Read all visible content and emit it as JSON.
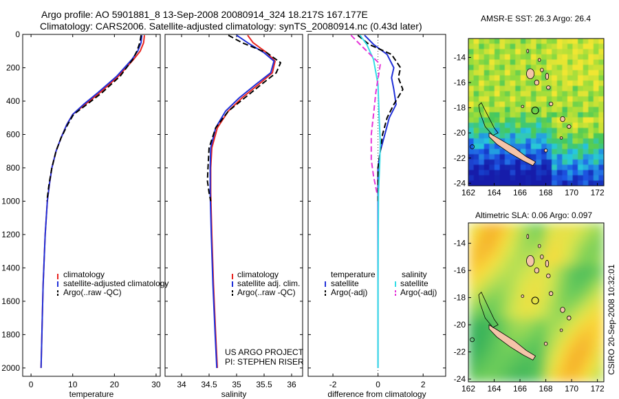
{
  "header": {
    "title_line1": "Argo profile: AO 5901881_8 13-Sep-2008 20080914_324 18.217S 167.177E",
    "title_line2": "Climatology: CARS2006. Satellite-adjusted climatology: synTS_20080914.nc (0.43d later)"
  },
  "footer": {
    "project_line1": "US ARGO PROJECT",
    "project_line2": "PI: STEPHEN RISER",
    "credit": "CSIRO 20-Sep-2008 10:32:01"
  },
  "colors": {
    "climatology": "#e8231f",
    "satellite": "#1f2fd8",
    "argo": "#000000",
    "salinity_sat": "#33dde6",
    "salinity_argo": "#e633d9",
    "land": "#f4c4a8"
  },
  "chart_data": [
    {
      "id": "temperature",
      "type": "line",
      "xlabel": "temperature",
      "ylabel": "",
      "xlim": [
        -2,
        31
      ],
      "ylim": [
        2050,
        0
      ],
      "xticks": [
        0,
        10,
        20,
        30
      ],
      "yticks": [
        0,
        200,
        400,
        600,
        800,
        1000,
        1200,
        1400,
        1600,
        1800,
        2000
      ],
      "legend": [
        "climatology",
        "satellite-adjusted climatology",
        "Argo(..raw -QC)"
      ],
      "legend_position": "lower-center",
      "series": [
        {
          "name": "climatology",
          "style": "solid",
          "color": "#e8231f",
          "x": [
            27.2,
            27.0,
            26.2,
            24.6,
            21.0,
            16.5,
            13.0,
            10.0,
            8.6,
            7.2,
            6.0,
            5.0,
            4.4,
            3.9,
            3.4,
            2.9,
            2.6,
            2.4
          ],
          "y": [
            5,
            50,
            100,
            150,
            250,
            350,
            420,
            480,
            540,
            620,
            700,
            800,
            900,
            1000,
            1200,
            1500,
            1800,
            2000
          ]
        },
        {
          "name": "satellite-adjusted climatology",
          "style": "solid",
          "color": "#1f2fd8",
          "x": [
            26.6,
            26.4,
            25.6,
            24.2,
            20.6,
            16.0,
            12.6,
            10.0,
            8.6,
            7.2,
            6.0,
            5.0,
            4.4,
            3.9,
            3.4,
            2.9,
            2.6,
            2.4
          ],
          "y": [
            5,
            50,
            100,
            150,
            250,
            350,
            420,
            480,
            540,
            620,
            700,
            800,
            900,
            1000,
            1200,
            1500,
            1800,
            2000
          ]
        },
        {
          "name": "Argo(..raw -QC)",
          "style": "dashed",
          "color": "#000000",
          "x": [
            26.4,
            26.1,
            25.4,
            24.4,
            21.4,
            17.0,
            13.4,
            10.2,
            8.8,
            7.2,
            6.0,
            5.0,
            4.3,
            3.8
          ],
          "y": [
            5,
            50,
            100,
            150,
            250,
            350,
            420,
            480,
            540,
            620,
            700,
            800,
            900,
            1000
          ]
        }
      ]
    },
    {
      "id": "salinity",
      "type": "line",
      "xlabel": "salinity",
      "ylabel": "",
      "xlim": [
        33.7,
        36.2
      ],
      "ylim": [
        2050,
        0
      ],
      "xticks": [
        34,
        34.5,
        35,
        35.5,
        36
      ],
      "legend": [
        "climatology",
        "satellite adj. clim.",
        "Argo(..raw -QC)"
      ],
      "legend_position": "lower-right",
      "series": [
        {
          "name": "climatology",
          "style": "solid",
          "color": "#e8231f",
          "x": [
            35.2,
            35.3,
            35.55,
            35.7,
            35.65,
            35.4,
            35.1,
            34.85,
            34.65,
            34.55,
            34.53,
            34.53,
            34.55,
            34.58,
            34.62,
            34.65
          ],
          "y": [
            5,
            50,
            110,
            160,
            230,
            300,
            380,
            460,
            560,
            680,
            800,
            950,
            1200,
            1500,
            1800,
            2000
          ]
        },
        {
          "name": "satellite adj. clim.",
          "style": "solid",
          "color": "#1f2fd8",
          "x": [
            35.0,
            35.2,
            35.5,
            35.68,
            35.62,
            35.35,
            35.05,
            34.8,
            34.62,
            34.53,
            34.52,
            34.52,
            34.54,
            34.57,
            34.61,
            34.64
          ],
          "y": [
            5,
            50,
            110,
            160,
            230,
            300,
            380,
            460,
            560,
            680,
            800,
            950,
            1200,
            1500,
            1800,
            2000
          ]
        },
        {
          "name": "Argo(..raw -QC)",
          "style": "dashed",
          "color": "#000000",
          "x": [
            34.85,
            35.1,
            35.55,
            35.8,
            35.72,
            35.45,
            35.15,
            34.85,
            34.62,
            34.5,
            34.48,
            34.47,
            34.5,
            34.53
          ],
          "y": [
            5,
            50,
            110,
            170,
            230,
            300,
            380,
            460,
            560,
            680,
            800,
            880,
            950,
            1000
          ]
        }
      ]
    },
    {
      "id": "difference",
      "type": "line",
      "xlabel": "difference from climatology",
      "ylabel": "",
      "xlim": [
        -3.1,
        3.0
      ],
      "ylim": [
        2050,
        0
      ],
      "xticks": [
        -2,
        0,
        2
      ],
      "legend_temperature_header": "temperature",
      "legend_salinity_header": "salinity",
      "legend": [
        "satellite",
        "Argo(-adj)",
        "satellite",
        "Argo(-adj)"
      ],
      "legend_position": "lower-center",
      "series": [
        {
          "name": "temperature satellite",
          "style": "solid",
          "color": "#1f2fd8",
          "x": [
            -0.6,
            -0.2,
            0.4,
            0.7,
            0.6,
            0.7,
            0.8,
            0.5,
            0.3,
            0.1,
            0.0,
            0.0,
            0.0,
            0.0
          ],
          "y": [
            5,
            60,
            120,
            200,
            260,
            330,
            420,
            500,
            600,
            700,
            800,
            950,
            1500,
            2000
          ]
        },
        {
          "name": "temperature Argo(-adj)",
          "style": "dashed",
          "color": "#000000",
          "x": [
            -0.9,
            -0.4,
            0.6,
            1.0,
            0.9,
            1.1,
            0.7,
            0.4,
            0.2,
            0.1,
            0.0,
            0.0
          ],
          "y": [
            5,
            60,
            120,
            200,
            260,
            330,
            420,
            500,
            600,
            700,
            800,
            1000
          ]
        },
        {
          "name": "salinity satellite",
          "style": "solid",
          "color": "#33dde6",
          "x": [
            -0.8,
            -0.5,
            -0.2,
            0.0,
            0.05,
            0.1,
            0.08,
            0.05,
            0.02,
            0.0,
            0.0
          ],
          "y": [
            5,
            60,
            150,
            300,
            500,
            650,
            750,
            850,
            950,
            1500,
            2000
          ]
        },
        {
          "name": "salinity Argo(-adj)",
          "style": "dashed",
          "color": "#e633d9",
          "x": [
            -1.2,
            -0.8,
            0.1,
            -0.1,
            -0.2,
            -0.3,
            -0.3,
            -0.2,
            -0.05
          ],
          "y": [
            5,
            60,
            180,
            350,
            480,
            600,
            750,
            850,
            950
          ]
        }
      ]
    },
    {
      "id": "sst_map",
      "type": "heatmap",
      "title": "AMSR-E SST: 26.3 Argo: 26.4",
      "xlim": [
        162,
        172.5
      ],
      "ylim": [
        -24.2,
        -12.5
      ],
      "xticks": [
        162,
        164,
        166,
        168,
        170,
        172
      ],
      "yticks": [
        -14,
        -16,
        -18,
        -20,
        -22,
        -24
      ],
      "argo_position": {
        "lon": 167.177,
        "lat": -18.217
      }
    },
    {
      "id": "sla_map",
      "type": "heatmap",
      "title": "Altimetric SLA: 0.06 Argo: 0.097",
      "xlim": [
        162,
        172.5
      ],
      "ylim": [
        -24.2,
        -12.5
      ],
      "xticks": [
        162,
        164,
        166,
        168,
        170,
        172
      ],
      "yticks": [
        -14,
        -16,
        -18,
        -20,
        -22,
        -24
      ],
      "argo_position": {
        "lon": 167.177,
        "lat": -18.217
      }
    }
  ]
}
